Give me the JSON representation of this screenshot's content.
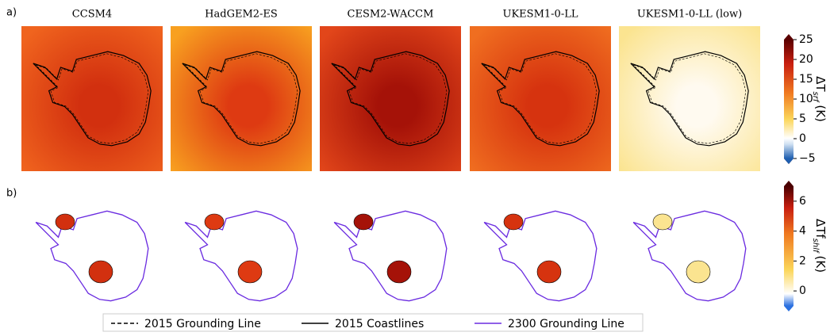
{
  "panel_labels": [
    "a)",
    "b)"
  ],
  "models": [
    {
      "name": "CCSM4",
      "outer": "#f0641e",
      "inner": "#d2300f"
    },
    {
      "name": "HadGEM2-ES",
      "outer": "#f8a020",
      "inner": "#de3a12"
    },
    {
      "name": "CESM2-WACCM",
      "outer": "#e2461a",
      "inner": "#a51208"
    },
    {
      "name": "UKESM1-0-LL",
      "outer": "#f06e20",
      "inner": "#d6330f"
    },
    {
      "name": "UKESM1-0-LL (low)",
      "outer": "#fbe490",
      "inner": "#fffaf0"
    }
  ],
  "colorbars": [
    {
      "label": {
        "main": "ΔT",
        "sub": "srf",
        "unit": "(K)"
      },
      "ylim": [
        -5,
        25
      ],
      "yticks": [
        {
          "value": -5,
          "label": "−5"
        },
        0,
        5,
        10,
        15,
        20,
        25
      ]
    },
    {
      "label": {
        "main": "ΔTf",
        "sub": "shlf",
        "unit": "(K)"
      },
      "ylim": [
        -1,
        7
      ],
      "yticks": [
        0,
        2,
        4,
        6
      ]
    }
  ],
  "legend": [
    {
      "label": "2015 Grounding Line",
      "color": "#000000",
      "dash": "5,3"
    },
    {
      "label": "2015 Coastlines",
      "color": "#000000",
      "dash": "none"
    },
    {
      "label": "2300 Grounding Line",
      "color": "#6a2be0",
      "dash": "none"
    }
  ]
}
